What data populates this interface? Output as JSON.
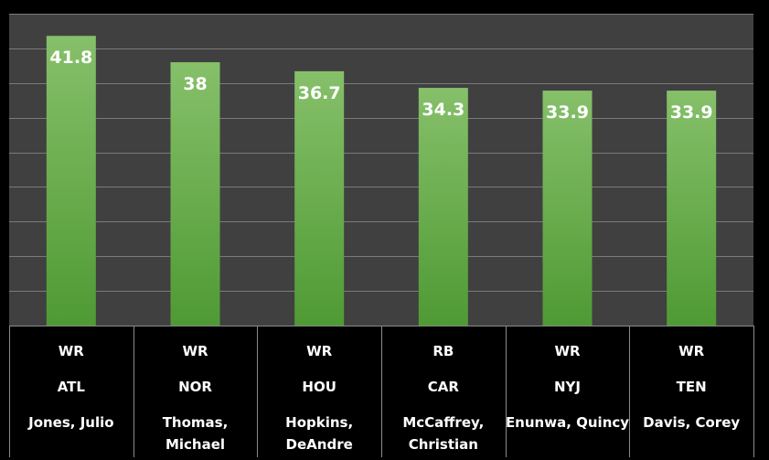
{
  "chart_data": {
    "type": "bar",
    "colors": {
      "background": "#000000",
      "plot_background": "#404040",
      "gridline": "#7a7a7a",
      "bar_top": "#86c06a",
      "bar_bottom": "#4f9a34",
      "table_border": "#8a8a8a",
      "text": "#ffffff"
    },
    "grid": true,
    "legend": "none",
    "ylim": [
      0,
      45
    ],
    "gridline_step": 5,
    "categories": [
      {
        "position": "WR",
        "team": "ATL",
        "name": [
          "Jones, Julio"
        ]
      },
      {
        "position": "WR",
        "team": "NOR",
        "name": [
          "Thomas,",
          "Michael"
        ]
      },
      {
        "position": "WR",
        "team": "HOU",
        "name": [
          "Hopkins,",
          "DeAndre"
        ]
      },
      {
        "position": "RB",
        "team": "CAR",
        "name": [
          "McCaffrey,",
          "Christian"
        ]
      },
      {
        "position": "WR",
        "team": "NYJ",
        "name": [
          "Enunwa, Quincy"
        ]
      },
      {
        "position": "WR",
        "team": "TEN",
        "name": [
          "Davis, Corey"
        ]
      }
    ],
    "values": [
      41.8,
      38,
      36.7,
      34.3,
      33.9,
      33.9
    ],
    "value_labels": [
      "41.8",
      "38",
      "36.7",
      "34.3",
      "33.9",
      "33.9"
    ]
  }
}
